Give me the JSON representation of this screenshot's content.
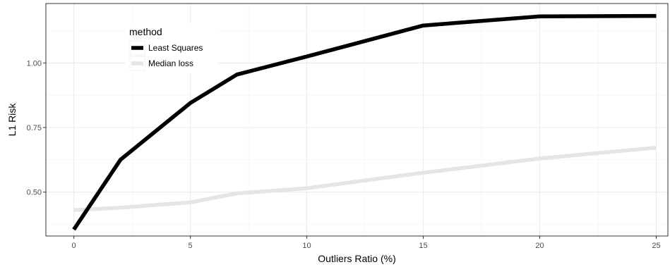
{
  "chart_data": {
    "type": "line",
    "title": "",
    "xlabel": "Outliers Ratio (%)",
    "ylabel": "L1 Risk",
    "xlim": [
      -1.2,
      25.5
    ],
    "ylim": [
      0.33,
      1.23
    ],
    "x_ticks": [
      0,
      5,
      10,
      15,
      20,
      25
    ],
    "x_tick_labels": [
      "0",
      "5",
      "10",
      "15",
      "20",
      "25"
    ],
    "y_ticks": [
      0.5,
      0.75,
      1.0
    ],
    "y_tick_labels": [
      "0.50",
      "0.75",
      "1.00"
    ],
    "grid": true,
    "legend": {
      "title": "method",
      "placement": "top-left"
    },
    "series": [
      {
        "name": "Least Squares",
        "color": "#000000",
        "x": [
          0,
          2,
          5,
          7,
          10,
          15,
          20,
          25
        ],
        "y": [
          0.355,
          0.625,
          0.845,
          0.955,
          1.025,
          1.145,
          1.18,
          1.182
        ]
      },
      {
        "name": "Median loss",
        "color": "#e5e5e5",
        "x": [
          0,
          2,
          5,
          7,
          10,
          15,
          20,
          25
        ],
        "y": [
          0.43,
          0.44,
          0.46,
          0.495,
          0.515,
          0.575,
          0.63,
          0.672
        ]
      }
    ]
  }
}
